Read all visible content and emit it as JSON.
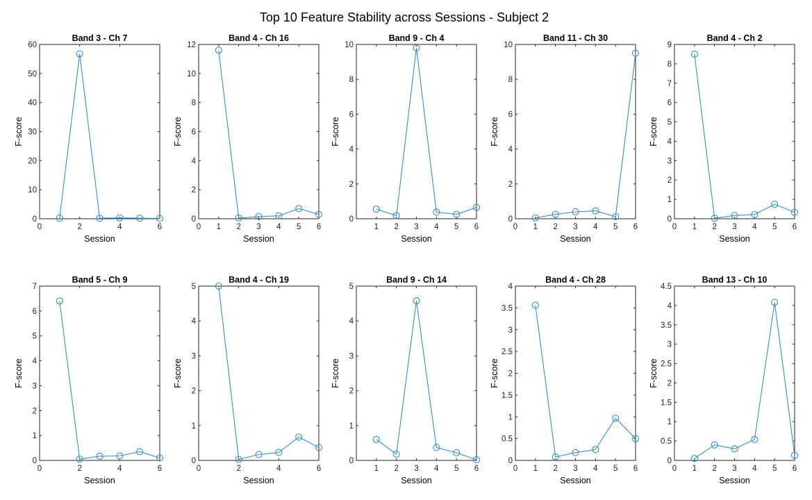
{
  "figure": {
    "title": "Top 10 Feature Stability across Sessions - Subject 2"
  },
  "style": {
    "line_color": "#3a8ec4",
    "axis_color": "#262626",
    "marker": "open-circle"
  },
  "chart_data": [
    {
      "type": "line",
      "title": "Band 3 - Ch 7",
      "xlabel": "Session",
      "ylabel": "F-score",
      "xlim": [
        0,
        6
      ],
      "ylim": [
        0,
        60
      ],
      "xticks": [
        0,
        2,
        4,
        6
      ],
      "yticks": [
        0,
        10,
        20,
        30,
        40,
        50,
        60
      ],
      "x": [
        1,
        2,
        3,
        4,
        5,
        6
      ],
      "y": [
        0.2,
        56.8,
        0.2,
        0.3,
        0.2,
        0.1
      ]
    },
    {
      "type": "line",
      "title": "Band 4 - Ch 16",
      "xlabel": "Session",
      "ylabel": "F-score",
      "xlim": [
        0,
        6
      ],
      "ylim": [
        0,
        12
      ],
      "xticks": [
        0,
        1,
        2,
        3,
        4,
        5,
        6
      ],
      "yticks": [
        0,
        2,
        4,
        6,
        8,
        10,
        12
      ],
      "x": [
        1,
        2,
        3,
        4,
        5,
        6
      ],
      "y": [
        11.6,
        0.05,
        0.15,
        0.2,
        0.7,
        0.3
      ]
    },
    {
      "type": "line",
      "title": "Band 9 - Ch 4",
      "xlabel": "Session",
      "ylabel": "F-score",
      "xlim": [
        0,
        6
      ],
      "ylim": [
        0,
        10
      ],
      "xticks": [
        1,
        2,
        3,
        4,
        5,
        6
      ],
      "yticks": [
        0,
        2,
        4,
        6,
        8,
        10
      ],
      "x": [
        1,
        2,
        3,
        4,
        5,
        6
      ],
      "y": [
        0.55,
        0.18,
        9.8,
        0.38,
        0.25,
        0.65
      ]
    },
    {
      "type": "line",
      "title": "Band 11 - Ch 30",
      "xlabel": "Session",
      "ylabel": "F-score",
      "xlim": [
        0,
        6
      ],
      "ylim": [
        0,
        10
      ],
      "xticks": [
        0,
        1,
        2,
        3,
        4,
        5,
        6
      ],
      "yticks": [
        0,
        2,
        4,
        6,
        8,
        10
      ],
      "x": [
        1,
        2,
        3,
        4,
        5,
        6
      ],
      "y": [
        0.05,
        0.25,
        0.4,
        0.45,
        0.12,
        9.5
      ]
    },
    {
      "type": "line",
      "title": "Band 4 - Ch 2",
      "xlabel": "Session",
      "ylabel": "F-score",
      "xlim": [
        0,
        6
      ],
      "ylim": [
        0,
        9
      ],
      "xticks": [
        0,
        1,
        2,
        3,
        4,
        5,
        6
      ],
      "yticks": [
        0,
        1,
        2,
        3,
        4,
        5,
        6,
        7,
        8,
        9
      ],
      "x": [
        1,
        2,
        3,
        4,
        5,
        6
      ],
      "y": [
        8.5,
        0.03,
        0.17,
        0.22,
        0.75,
        0.33
      ]
    },
    {
      "type": "line",
      "title": "Band 5 - Ch 9",
      "xlabel": "Session",
      "ylabel": "F-score",
      "xlim": [
        0,
        6
      ],
      "ylim": [
        0,
        7
      ],
      "xticks": [
        0,
        2,
        4,
        6
      ],
      "yticks": [
        0,
        1,
        2,
        3,
        4,
        5,
        6,
        7
      ],
      "x": [
        1,
        2,
        3,
        4,
        5,
        6
      ],
      "y": [
        6.4,
        0.05,
        0.17,
        0.18,
        0.35,
        0.1
      ]
    },
    {
      "type": "line",
      "title": "Band 4 - Ch 19",
      "xlabel": "Session",
      "ylabel": "F-score",
      "xlim": [
        0,
        6
      ],
      "ylim": [
        0,
        5
      ],
      "xticks": [
        0,
        2,
        4,
        6
      ],
      "yticks": [
        0,
        1,
        2,
        3,
        4,
        5
      ],
      "x": [
        1,
        2,
        3,
        4,
        5,
        6
      ],
      "y": [
        5.0,
        0.03,
        0.17,
        0.23,
        0.67,
        0.37
      ]
    },
    {
      "type": "line",
      "title": "Band 9 - Ch 14",
      "xlabel": "Session",
      "ylabel": "F-score",
      "xlim": [
        0,
        6
      ],
      "ylim": [
        0,
        5
      ],
      "xticks": [
        1,
        2,
        3,
        4,
        5,
        6
      ],
      "yticks": [
        0,
        1,
        2,
        3,
        4,
        5
      ],
      "x": [
        1,
        2,
        3,
        4,
        5,
        6
      ],
      "y": [
        0.6,
        0.18,
        4.58,
        0.37,
        0.22,
        0.02
      ]
    },
    {
      "type": "line",
      "title": "Band 4 - Ch 28",
      "xlabel": "Session",
      "ylabel": "F-score",
      "xlim": [
        0,
        6
      ],
      "ylim": [
        0,
        4
      ],
      "xticks": [
        0,
        1,
        2,
        3,
        4,
        5,
        6
      ],
      "yticks": [
        0,
        0.5,
        1,
        1.5,
        2,
        2.5,
        3,
        3.5,
        4
      ],
      "x": [
        1,
        2,
        3,
        4,
        5,
        6
      ],
      "y": [
        3.56,
        0.08,
        0.18,
        0.25,
        0.97,
        0.5
      ]
    },
    {
      "type": "line",
      "title": "Band 13 - Ch 10",
      "xlabel": "Session",
      "ylabel": "F-score",
      "xlim": [
        0,
        6
      ],
      "ylim": [
        0,
        4.5
      ],
      "xticks": [
        0,
        1,
        2,
        3,
        4,
        5,
        6
      ],
      "yticks": [
        0,
        0.5,
        1,
        1.5,
        2,
        2.5,
        3,
        3.5,
        4,
        4.5
      ],
      "x": [
        1,
        2,
        3,
        4,
        5,
        6
      ],
      "y": [
        0.05,
        0.4,
        0.3,
        0.54,
        4.08,
        0.13
      ]
    }
  ]
}
